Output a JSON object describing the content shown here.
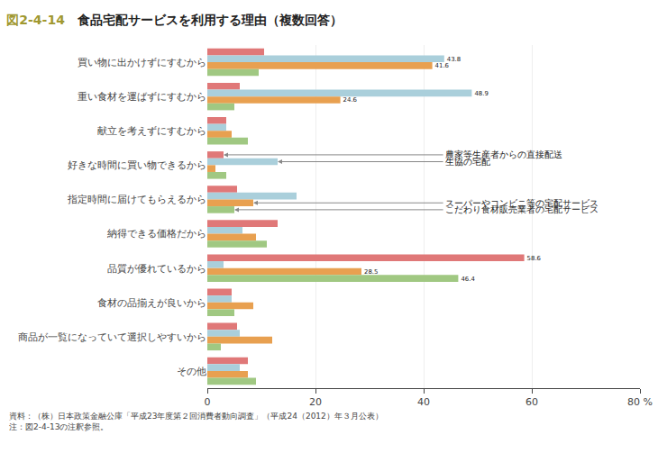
{
  "chart_data": {
    "type": "bar",
    "orientation": "horizontal",
    "figure_label": "図2-4-14",
    "title": "食品宅配サービスを利用する理由（複数回答）",
    "categories": [
      "買い物に出かけずにすむから",
      "重い食材を運ばずにすむから",
      "献立を考えずにすむから",
      "好きな時間に買い物できるから",
      "指定時間に届けてもらえるから",
      "納得できる価格だから",
      "品質が優れているから",
      "食材の品揃えが良いから",
      "商品が一覧になっていて選択しやすいから",
      "その他"
    ],
    "series": [
      {
        "name": "農家等生産者からの直接配送",
        "color": "#e07878",
        "values": [
          10.5,
          6.0,
          3.5,
          3.0,
          5.5,
          13.0,
          58.6,
          4.5,
          5.5,
          7.5
        ],
        "value_labels": [
          null,
          null,
          null,
          null,
          null,
          null,
          "58.6",
          null,
          null,
          null
        ]
      },
      {
        "name": "生協の宅配",
        "color": "#aacfdb",
        "values": [
          43.8,
          48.9,
          3.5,
          13.0,
          16.5,
          6.5,
          3.0,
          4.5,
          6.0,
          6.0
        ],
        "value_labels": [
          "43.8",
          "48.9",
          null,
          null,
          null,
          null,
          null,
          null,
          null,
          null
        ]
      },
      {
        "name": "スーパーやコンビニ等の宅配サービス",
        "color": "#e8a050",
        "values": [
          41.6,
          24.6,
          4.5,
          1.5,
          8.5,
          9.0,
          28.5,
          8.5,
          12.0,
          7.5
        ],
        "value_labels": [
          "41.6",
          "24.6",
          null,
          null,
          null,
          null,
          "28.5",
          null,
          null,
          null
        ]
      },
      {
        "name": "こだわり食材販売業者の宅配サービス",
        "color": "#a0c882",
        "values": [
          9.5,
          5.0,
          7.5,
          3.5,
          5.0,
          11.0,
          46.4,
          5.0,
          2.5,
          9.0
        ],
        "value_labels": [
          null,
          null,
          null,
          null,
          null,
          null,
          "46.4",
          null,
          null,
          null
        ]
      }
    ],
    "xlim": [
      0,
      80
    ],
    "xticks": [
      0,
      20,
      40,
      60,
      {
        "value": 80,
        "label": "80 %"
      }
    ],
    "grid": true,
    "annotations": [
      {
        "text": "農家等生産者からの直接配送",
        "category": "好きな時間に買い物できるから",
        "series": "農家等生産者からの直接配送"
      },
      {
        "text": "生協の宅配",
        "category": "好きな時間に買い物できるから",
        "series": "生協の宅配"
      },
      {
        "text": "スーパーやコンビニ等の宅配サービス",
        "category": "指定時間に届けてもらえるから",
        "series": "スーパーやコンビニ等の宅配サービス"
      },
      {
        "text": "こだわり食材販売業者の宅配サービス",
        "category": "指定時間に届けてもらえるから",
        "series": "こだわり食材販売業者の宅配サービス"
      }
    ],
    "footnote": [
      "資料：（株）日本政策金融公庫「平成23年度第２回消費者動向調査」（平成24（2012）年３月公表）",
      "注：図2-4-13の注釈参照。"
    ]
  }
}
